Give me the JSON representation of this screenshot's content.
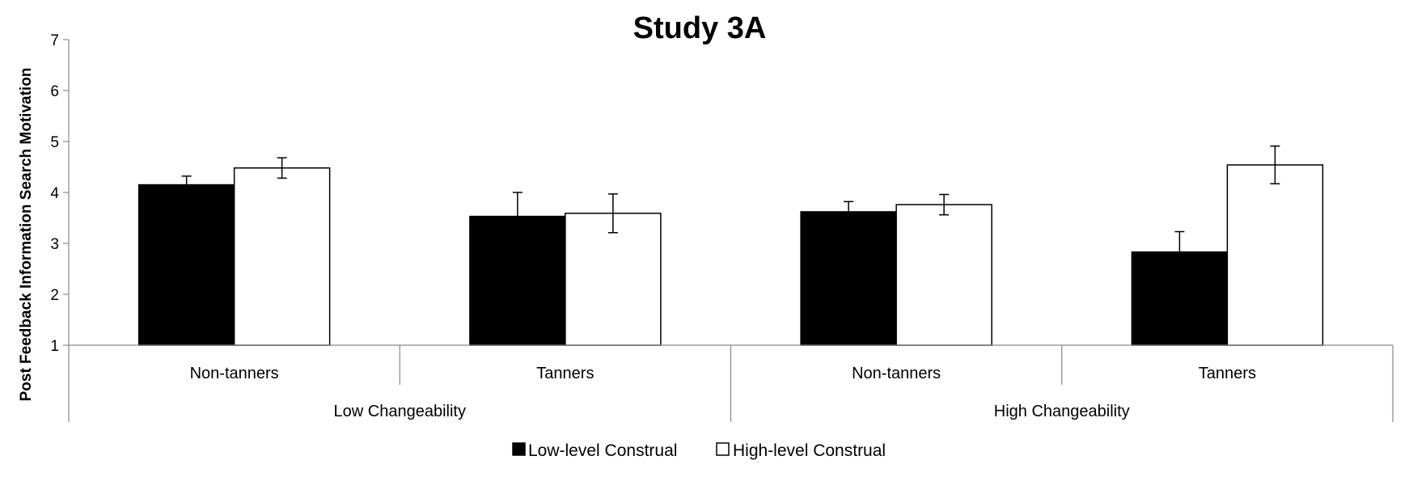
{
  "chart_data": {
    "type": "bar",
    "title": "Study 3A",
    "ylabel": "Post Feedback Information Search Motivation",
    "xlabel": "",
    "ylim": [
      1,
      7
    ],
    "yticks": [
      "1",
      "2",
      "3",
      "4",
      "5",
      "6",
      "7"
    ],
    "groups": [
      {
        "label": "Low Changeability",
        "categories": [
          "Non-tanners",
          "Tanners"
        ]
      },
      {
        "label": "High Changeability",
        "categories": [
          "Non-tanners",
          "Tanners"
        ]
      }
    ],
    "categories": [
      "Non-tanners",
      "Tanners",
      "Non-tanners",
      "Tanners"
    ],
    "series": [
      {
        "name": "Low-level Construal",
        "color": "#000000",
        "values": [
          4.15,
          3.53,
          3.62,
          2.83
        ],
        "error": [
          0.17,
          0.47,
          0.2,
          0.4
        ]
      },
      {
        "name": "High-level Construal",
        "color": "#ffffff",
        "values": [
          4.48,
          3.59,
          3.76,
          4.54
        ],
        "error": [
          0.2,
          0.38,
          0.2,
          0.37
        ]
      }
    ],
    "grid": false,
    "legend_position": "bottom"
  }
}
